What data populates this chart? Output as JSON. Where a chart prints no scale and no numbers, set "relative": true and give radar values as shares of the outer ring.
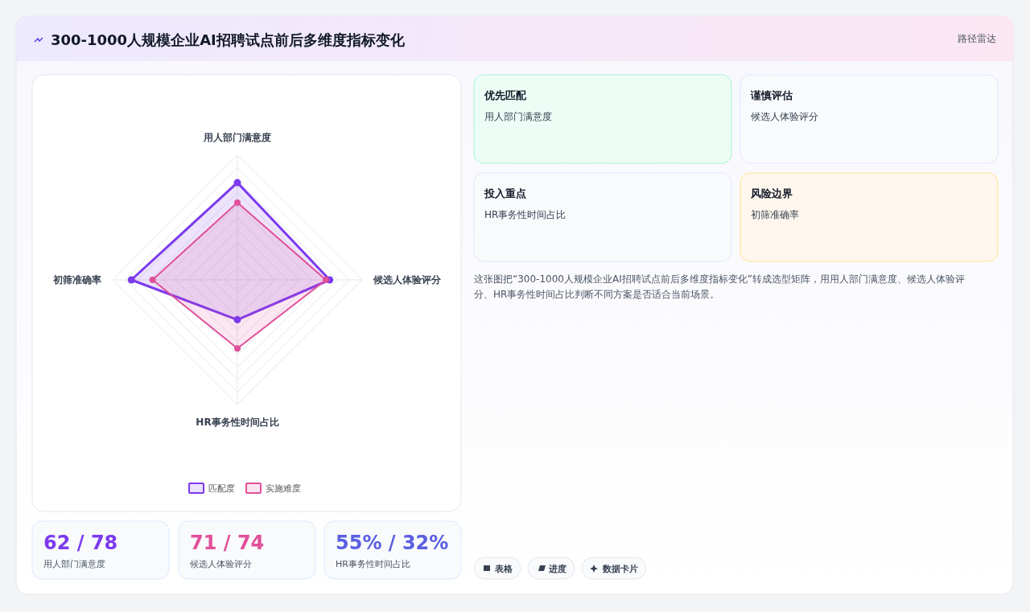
{
  "chart_data": {
    "type": "radar",
    "title": "300-1000人规模企业AI招聘试点前后多维度指标变化",
    "relative": true,
    "grid": true,
    "legend": "bottom",
    "marker": "circle",
    "categories": [
      "用人部门满意度",
      "候选人体验评分",
      "HR事务性时间占比",
      "初筛准确率"
    ],
    "series": [
      {
        "name": "匹配度",
        "color": "#7c3aed",
        "values": [
          0.78,
          0.74,
          0.32,
          0.85
        ]
      },
      {
        "name": "实施难度",
        "color": "#e0509a",
        "values": [
          0.62,
          0.71,
          0.55,
          0.68
        ]
      }
    ],
    "annotations": [
      "路径雷达",
      "优先匹配",
      "用人部门满意度",
      "谨慎评估",
      "候选人体验评分",
      "投入重点",
      "HR事务性时间占比",
      "风险边界",
      "初筛准确率",
      "这张图把“300-1000人规模企业AI招聘试点前后多维度指标变化”转成选型矩阵，用用人部门满意度、候选人体验评分、HR事务性时间占比判断不同方案是否适合当前场景。",
      "62 / 78",
      "用人部门满意度",
      "71 / 74",
      "候选人体验评分",
      "55% / 32%",
      "HR事务性时间占比",
      "表格",
      "进度",
      "数据卡片"
    ]
  }
}
